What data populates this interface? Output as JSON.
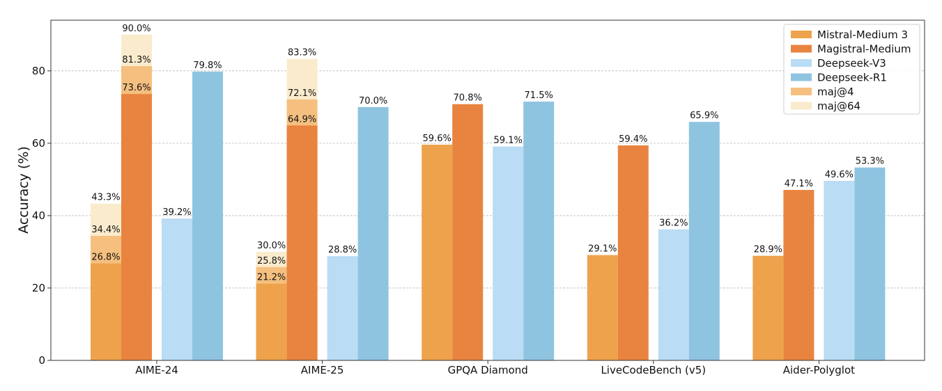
{
  "chart_data": {
    "type": "bar",
    "categories": [
      "AIME-24",
      "AIME-25",
      "GPQA Diamond",
      "LiveCodeBench (v5)",
      "Aider-Polyglot"
    ],
    "ylabel": "Accuracy (%)",
    "xlabel": "",
    "ylim": [
      0,
      94
    ],
    "yticks": [
      0,
      20,
      40,
      60,
      80
    ],
    "grid": true,
    "legend_position": "top-right",
    "series": [
      {
        "name": "Mistral-Medium 3",
        "color": "#eea24c",
        "values": [
          26.8,
          21.2,
          59.6,
          29.1,
          28.9
        ],
        "labels": [
          "26.8%",
          "21.2%",
          "59.6%",
          "29.1%",
          "28.9%"
        ]
      },
      {
        "name": "Magistral-Medium",
        "color": "#e8843f",
        "values": [
          73.6,
          64.9,
          70.8,
          59.4,
          47.1
        ],
        "labels": [
          "73.6%",
          "64.9%",
          "70.8%",
          "59.4%",
          "47.1%"
        ]
      },
      {
        "name": "Deepseek-V3",
        "color": "#badcf4",
        "values": [
          39.2,
          28.8,
          59.1,
          36.2,
          49.6
        ],
        "labels": [
          "39.2%",
          "28.8%",
          "59.1%",
          "36.2%",
          "49.6%"
        ]
      },
      {
        "name": "Deepseek-R1",
        "color": "#8fc4e0",
        "values": [
          79.8,
          70.0,
          71.5,
          65.9,
          53.3
        ],
        "labels": [
          "79.8%",
          "70.0%",
          "71.5%",
          "65.9%",
          "53.3%"
        ]
      }
    ],
    "overlays": [
      {
        "name": "maj@4",
        "color": "#f5c07f",
        "points": [
          {
            "category": 0,
            "series": 0,
            "value": 34.4,
            "label": "34.4%"
          },
          {
            "category": 0,
            "series": 1,
            "value": 81.3,
            "label": "81.3%"
          },
          {
            "category": 1,
            "series": 0,
            "value": 25.8,
            "label": "25.8%"
          },
          {
            "category": 1,
            "series": 1,
            "value": 72.1,
            "label": "72.1%"
          }
        ]
      },
      {
        "name": "maj@64",
        "color": "#faebcd",
        "points": [
          {
            "category": 0,
            "series": 0,
            "value": 43.3,
            "label": "43.3%"
          },
          {
            "category": 0,
            "series": 1,
            "value": 90.0,
            "label": "90.0%"
          },
          {
            "category": 1,
            "series": 0,
            "value": 30.0,
            "label": "30.0%"
          },
          {
            "category": 1,
            "series": 1,
            "value": 83.3,
            "label": "83.3%"
          }
        ]
      }
    ],
    "legend": [
      "Mistral-Medium 3",
      "Magistral-Medium",
      "Deepseek-V3",
      "Deepseek-R1",
      "maj@4",
      "maj@64"
    ]
  }
}
